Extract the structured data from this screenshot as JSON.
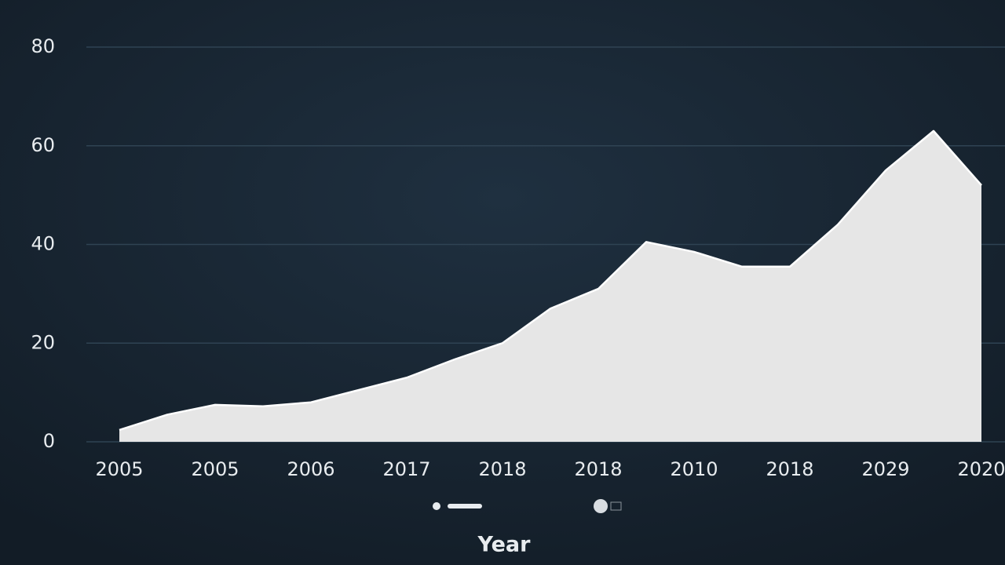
{
  "chart_data": {
    "type": "area",
    "x_label": "Year",
    "categories": [
      "2005",
      null,
      "2005",
      null,
      "2006",
      null,
      "2017",
      null,
      "2018",
      null,
      "2018",
      null,
      "2010",
      null,
      "2018",
      null,
      "2029",
      null,
      "2020"
    ],
    "values": [
      2.4,
      5.5,
      7.5,
      7.2,
      8,
      10.5,
      13,
      16.7,
      20,
      27,
      31,
      40.5,
      38.5,
      35.5,
      35.5,
      44,
      55,
      63,
      52
    ],
    "color": "#e6e6e6",
    "ylim": [
      0,
      80
    ],
    "yticks": [
      0,
      20,
      40,
      60,
      80
    ],
    "grid": true
  }
}
